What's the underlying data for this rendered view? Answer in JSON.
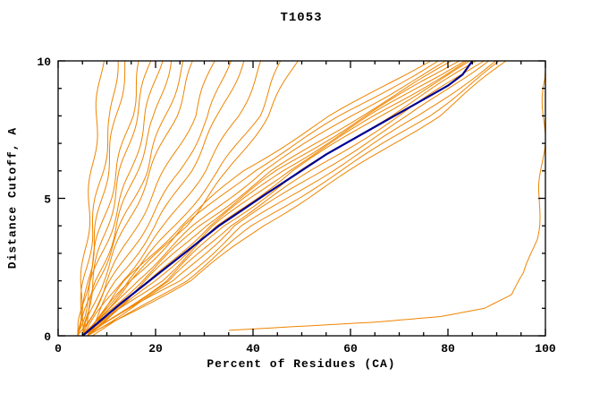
{
  "chart_data": {
    "type": "line",
    "title": "T1053",
    "xlabel": "Percent of Residues (CA)",
    "ylabel": "Distance Cutoff, A",
    "xlim": [
      0,
      100
    ],
    "ylim": [
      0,
      10
    ],
    "xticks": {
      "major": [
        0,
        20,
        40,
        60,
        80,
        100
      ],
      "minor_step": 5
    },
    "yticks": {
      "major": [
        0,
        5,
        10
      ],
      "minor_step": 1
    },
    "grid": false,
    "legend": "none",
    "colors": {
      "model": "#ee8500",
      "highlight": "#000090",
      "axis": "#000000"
    },
    "highlight_series": {
      "name": "selected-model",
      "points": [
        [
          5,
          0
        ],
        [
          9,
          0.6
        ],
        [
          13,
          1.2
        ],
        [
          18,
          1.9
        ],
        [
          23,
          2.6
        ],
        [
          28,
          3.3
        ],
        [
          33,
          4.0
        ],
        [
          38,
          4.6
        ],
        [
          43,
          5.2
        ],
        [
          49,
          5.9
        ],
        [
          55,
          6.6
        ],
        [
          61,
          7.2
        ],
        [
          67,
          7.8
        ],
        [
          72,
          8.3
        ],
        [
          76,
          8.7
        ],
        [
          80,
          9.1
        ],
        [
          83,
          9.5
        ],
        [
          85,
          10
        ]
      ]
    },
    "series": [
      {
        "points": [
          [
            4,
            0
          ],
          [
            5,
            2
          ],
          [
            6,
            4
          ],
          [
            7,
            6
          ],
          [
            8,
            8
          ],
          [
            9,
            10
          ]
        ]
      },
      {
        "points": [
          [
            4,
            0
          ],
          [
            5.5,
            2
          ],
          [
            7,
            4
          ],
          [
            9,
            6
          ],
          [
            11,
            8
          ],
          [
            12,
            10
          ]
        ]
      },
      {
        "points": [
          [
            5,
            0
          ],
          [
            6,
            2
          ],
          [
            8,
            4
          ],
          [
            10,
            6
          ],
          [
            12,
            8
          ],
          [
            14,
            10
          ]
        ]
      },
      {
        "points": [
          [
            4,
            0
          ],
          [
            6,
            2
          ],
          [
            9,
            4
          ],
          [
            12,
            6
          ],
          [
            15,
            8
          ],
          [
            17,
            10
          ]
        ]
      },
      {
        "points": [
          [
            5,
            0
          ],
          [
            7,
            2
          ],
          [
            10,
            4
          ],
          [
            13,
            6
          ],
          [
            16,
            8
          ],
          [
            19,
            10
          ]
        ]
      },
      {
        "points": [
          [
            4,
            0
          ],
          [
            7,
            2
          ],
          [
            11,
            4
          ],
          [
            15,
            6
          ],
          [
            18,
            8
          ],
          [
            21,
            10
          ]
        ]
      },
      {
        "points": [
          [
            5,
            0
          ],
          [
            8,
            2
          ],
          [
            12,
            4
          ],
          [
            16,
            6
          ],
          [
            20,
            8
          ],
          [
            23,
            10
          ]
        ]
      },
      {
        "points": [
          [
            4,
            0
          ],
          [
            8,
            2
          ],
          [
            13,
            4
          ],
          [
            18,
            6
          ],
          [
            22,
            8
          ],
          [
            26,
            10
          ]
        ]
      },
      {
        "points": [
          [
            5,
            0
          ],
          [
            9,
            2
          ],
          [
            14,
            4
          ],
          [
            19,
            6
          ],
          [
            24,
            8
          ],
          [
            28,
            10
          ]
        ]
      },
      {
        "points": [
          [
            5,
            0
          ],
          [
            10,
            2
          ],
          [
            16,
            4
          ],
          [
            22,
            6
          ],
          [
            28,
            8
          ],
          [
            32,
            10
          ]
        ]
      },
      {
        "points": [
          [
            4,
            0
          ],
          [
            11,
            2
          ],
          [
            18,
            4
          ],
          [
            25,
            6
          ],
          [
            31,
            8
          ],
          [
            35,
            10
          ]
        ]
      },
      {
        "points": [
          [
            6,
            0
          ],
          [
            12,
            2
          ],
          [
            20,
            4
          ],
          [
            27,
            6
          ],
          [
            33,
            8
          ],
          [
            38,
            10
          ]
        ]
      },
      {
        "points": [
          [
            5,
            0
          ],
          [
            13,
            2
          ],
          [
            22,
            4
          ],
          [
            30,
            6
          ],
          [
            37,
            8
          ],
          [
            42,
            10
          ]
        ]
      },
      {
        "points": [
          [
            6,
            0
          ],
          [
            14,
            2
          ],
          [
            24,
            4
          ],
          [
            33,
            6
          ],
          [
            41,
            8
          ],
          [
            46,
            10
          ]
        ]
      },
      {
        "points": [
          [
            5,
            0
          ],
          [
            15,
            2
          ],
          [
            26,
            4
          ],
          [
            35,
            6
          ],
          [
            43,
            8
          ],
          [
            49,
            10
          ]
        ]
      },
      {
        "points": [
          [
            5,
            0
          ],
          [
            14,
            2
          ],
          [
            25,
            4
          ],
          [
            38,
            6
          ],
          [
            56,
            8
          ],
          [
            76,
            10
          ]
        ]
      },
      {
        "points": [
          [
            5,
            0
          ],
          [
            15,
            2
          ],
          [
            26,
            4
          ],
          [
            40,
            6
          ],
          [
            58,
            8
          ],
          [
            78,
            10
          ]
        ]
      },
      {
        "points": [
          [
            6,
            0
          ],
          [
            16,
            2
          ],
          [
            28,
            4
          ],
          [
            42,
            6
          ],
          [
            60,
            8
          ],
          [
            80,
            10
          ]
        ]
      },
      {
        "points": [
          [
            5,
            0
          ],
          [
            17,
            2
          ],
          [
            29,
            4
          ],
          [
            44,
            6
          ],
          [
            62,
            8
          ],
          [
            81,
            10
          ]
        ]
      },
      {
        "points": [
          [
            6,
            0
          ],
          [
            18,
            2
          ],
          [
            30,
            4
          ],
          [
            45,
            6
          ],
          [
            63,
            8
          ],
          [
            82,
            10
          ]
        ]
      },
      {
        "points": [
          [
            5,
            0
          ],
          [
            19,
            2
          ],
          [
            31,
            4
          ],
          [
            46,
            6
          ],
          [
            64,
            8
          ],
          [
            83,
            10
          ]
        ]
      },
      {
        "points": [
          [
            6,
            0
          ],
          [
            20,
            2
          ],
          [
            32,
            4
          ],
          [
            47,
            6
          ],
          [
            65,
            8
          ],
          [
            84,
            10
          ]
        ]
      },
      {
        "points": [
          [
            5,
            0
          ],
          [
            21,
            2
          ],
          [
            33,
            4
          ],
          [
            48,
            6
          ],
          [
            66,
            8
          ],
          [
            85,
            10
          ]
        ]
      },
      {
        "points": [
          [
            6,
            0
          ],
          [
            22,
            2
          ],
          [
            34,
            4
          ],
          [
            50,
            6
          ],
          [
            68,
            8
          ],
          [
            86,
            10
          ]
        ]
      },
      {
        "points": [
          [
            5,
            0
          ],
          [
            23,
            2
          ],
          [
            35,
            4
          ],
          [
            52,
            6
          ],
          [
            70,
            8
          ],
          [
            87,
            10
          ]
        ]
      },
      {
        "points": [
          [
            6,
            0
          ],
          [
            24,
            2
          ],
          [
            36,
            4
          ],
          [
            54,
            6
          ],
          [
            72,
            8
          ],
          [
            88,
            10
          ]
        ]
      },
      {
        "points": [
          [
            5,
            0
          ],
          [
            25,
            2
          ],
          [
            38,
            4
          ],
          [
            56,
            6
          ],
          [
            74,
            8
          ],
          [
            90,
            10
          ]
        ]
      },
      {
        "points": [
          [
            7,
            0
          ],
          [
            26,
            2
          ],
          [
            40,
            4
          ],
          [
            58,
            6
          ],
          [
            76,
            8
          ],
          [
            91,
            10
          ]
        ]
      },
      {
        "points": [
          [
            6,
            0
          ],
          [
            27,
            2
          ],
          [
            42,
            4
          ],
          [
            60,
            6
          ],
          [
            78,
            8
          ],
          [
            92,
            10
          ]
        ]
      },
      {
        "points": [
          [
            35,
            0.2
          ],
          [
            50,
            0.35
          ],
          [
            65,
            0.5
          ],
          [
            78,
            0.7
          ],
          [
            87,
            1.0
          ],
          [
            93,
            1.5
          ],
          [
            96,
            2.3
          ],
          [
            98,
            3.5
          ],
          [
            99,
            5
          ],
          [
            99.5,
            7
          ],
          [
            100,
            9.7
          ]
        ]
      }
    ]
  }
}
